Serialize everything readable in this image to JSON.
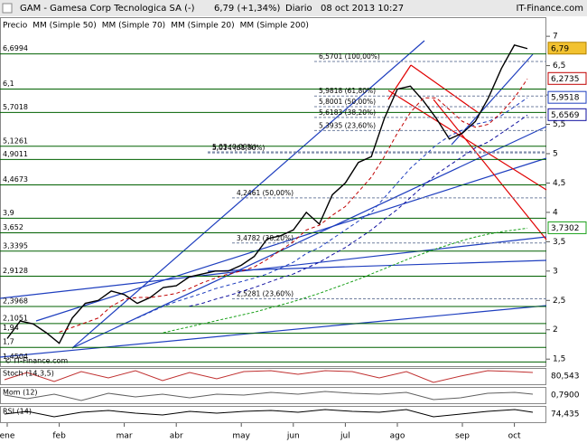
{
  "chart_data": {
    "type": "line",
    "title": "GAM - Gamesa Corp Tecnologica SA (-)",
    "quote": "6,79 (+1,34%)",
    "period": "Diario",
    "datetime": "08 oct 2013 10:27",
    "source": "IT-Finance.com",
    "watermark": "© IT-Finance.com",
    "categories": [
      "ene",
      null,
      null,
      null,
      "feb",
      null,
      null,
      null,
      null,
      "mar",
      null,
      null,
      null,
      "abr",
      null,
      null,
      null,
      null,
      "may",
      null,
      null,
      null,
      "jun",
      null,
      null,
      null,
      "jul",
      null,
      null,
      null,
      "ago",
      null,
      null,
      null,
      null,
      "sep",
      null,
      null,
      null,
      "oct",
      null
    ],
    "series": [
      {
        "name": "Precio",
        "color": "#000000",
        "last_label": "6,79",
        "values": [
          1.85,
          2.15,
          2.1,
          1.95,
          1.77,
          2.2,
          2.45,
          2.5,
          2.66,
          2.6,
          2.45,
          2.55,
          2.72,
          2.75,
          2.9,
          2.95,
          3.0,
          3.0,
          3.1,
          3.25,
          3.55,
          3.6,
          3.7,
          4.0,
          3.8,
          4.3,
          4.5,
          4.85,
          4.95,
          5.6,
          6.1,
          6.15,
          5.9,
          5.6,
          5.25,
          5.35,
          5.55,
          5.95,
          6.45,
          6.85,
          6.79
        ]
      },
      {
        "name": "MM (Simple 50)",
        "color": "#1f3fbf",
        "last_label": "5,9518",
        "values": [
          null,
          null,
          null,
          null,
          null,
          null,
          null,
          null,
          null,
          null,
          2.2,
          2.3,
          2.4,
          2.48,
          2.55,
          2.62,
          2.7,
          2.76,
          2.82,
          2.88,
          2.95,
          3.05,
          3.15,
          3.3,
          3.4,
          3.55,
          3.7,
          3.85,
          4.0,
          4.25,
          4.5,
          4.75,
          4.95,
          5.15,
          5.3,
          5.4,
          5.5,
          5.55,
          5.65,
          5.8,
          5.9518
        ]
      },
      {
        "name": "MM (Simple 70)",
        "color": "#1010a0",
        "last_label": "5,6569",
        "values": [
          null,
          null,
          null,
          null,
          null,
          null,
          null,
          null,
          null,
          null,
          null,
          null,
          null,
          null,
          2.4,
          2.45,
          2.52,
          2.58,
          2.65,
          2.72,
          2.8,
          2.88,
          2.95,
          3.05,
          3.15,
          3.28,
          3.4,
          3.55,
          3.7,
          3.88,
          4.05,
          4.25,
          4.45,
          4.65,
          4.8,
          4.95,
          5.1,
          5.2,
          5.35,
          5.5,
          5.6569
        ]
      },
      {
        "name": "MM (Simple 20)",
        "color": "#c00000",
        "last_label": "6,2735",
        "values": [
          null,
          null,
          null,
          null,
          1.96,
          2.04,
          2.12,
          2.2,
          2.4,
          2.52,
          2.55,
          2.55,
          2.58,
          2.62,
          2.7,
          2.8,
          2.88,
          2.95,
          3.0,
          3.07,
          3.2,
          3.35,
          3.5,
          3.7,
          3.78,
          3.95,
          4.1,
          4.35,
          4.6,
          4.95,
          5.35,
          5.7,
          5.95,
          5.95,
          5.75,
          5.55,
          5.45,
          5.5,
          5.7,
          5.95,
          6.2735
        ]
      },
      {
        "name": "MM (Simple 200)",
        "color": "#18a018",
        "last_label": "3,7302",
        "values": [
          null,
          null,
          null,
          null,
          null,
          null,
          null,
          null,
          null,
          null,
          null,
          null,
          1.95,
          2.0,
          2.05,
          2.1,
          2.15,
          2.2,
          2.25,
          2.3,
          2.36,
          2.42,
          2.48,
          2.55,
          2.62,
          2.7,
          2.78,
          2.86,
          2.95,
          3.04,
          3.13,
          3.22,
          3.3,
          3.38,
          3.45,
          3.52,
          3.58,
          3.63,
          3.67,
          3.7,
          3.7302
        ]
      }
    ],
    "ylim": [
      1.38,
      7.31
    ],
    "yticks": [
      {
        "value": 1.5,
        "label": "1,5"
      },
      2,
      {
        "value": 2.5,
        "label": "2,5"
      },
      3,
      {
        "value": 3.5,
        "label": "3,5"
      },
      4,
      {
        "value": 4.5,
        "label": "4,5"
      },
      5,
      {
        "value": 5.5,
        "label": "5,5"
      },
      6,
      {
        "value": 6.5,
        "label": "6,5"
      },
      7
    ],
    "levels": [
      {
        "value": 6.6994,
        "label": "6,6994"
      },
      {
        "value": 6.1,
        "label": "6,1"
      },
      {
        "value": 5.7018,
        "label": "5,7018"
      },
      {
        "value": 5.1261,
        "label": "5,1261"
      },
      {
        "value": 4.9011,
        "label": "4,9011"
      },
      {
        "value": 4.4673,
        "label": "4,4673"
      },
      {
        "value": 3.9,
        "label": "3,9"
      },
      {
        "value": 3.652,
        "label": "3,652"
      },
      {
        "value": 3.3395,
        "label": "3,3395"
      },
      {
        "value": 2.9128,
        "label": "2,9128"
      },
      {
        "value": 2.3968,
        "label": "2,3968"
      },
      {
        "value": 2.1051,
        "label": "2,1051"
      },
      {
        "value": 1.94,
        "label": "1,94"
      },
      {
        "value": 1.7,
        "label": "1,7"
      },
      {
        "value": 1.4504,
        "label": "1,4504"
      }
    ],
    "fib": [
      {
        "value": 6.5701,
        "label": "6,5701 (100,00%)"
      },
      {
        "value": 5.9818,
        "label": "5,9818 (61,80%)"
      },
      {
        "value": 5.8001,
        "label": "5,8001 (50,00%)"
      },
      {
        "value": 5.6183,
        "label": "5,6183 (38,20%)"
      },
      {
        "value": 5.3935,
        "label": "5,3935 (23,60%)"
      },
      {
        "value": 5.014,
        "label": "5,014 (61,80%)"
      },
      {
        "value": 5.03,
        "label": "5,03 (0,00%)"
      },
      {
        "value": 4.2461,
        "label": "4,2461 (50,00%)"
      },
      {
        "value": 3.4782,
        "label": "3,4782 (38,20%)"
      },
      {
        "value": 2.5281,
        "label": "2,5281 (23,60%)"
      }
    ],
    "indicators": [
      {
        "name": "Stoch (14,3,5)",
        "value": "80,543"
      },
      {
        "name": "Mom (12)",
        "value": "0,7900"
      },
      {
        "name": "RSI (14)",
        "value": "74,435"
      }
    ]
  }
}
